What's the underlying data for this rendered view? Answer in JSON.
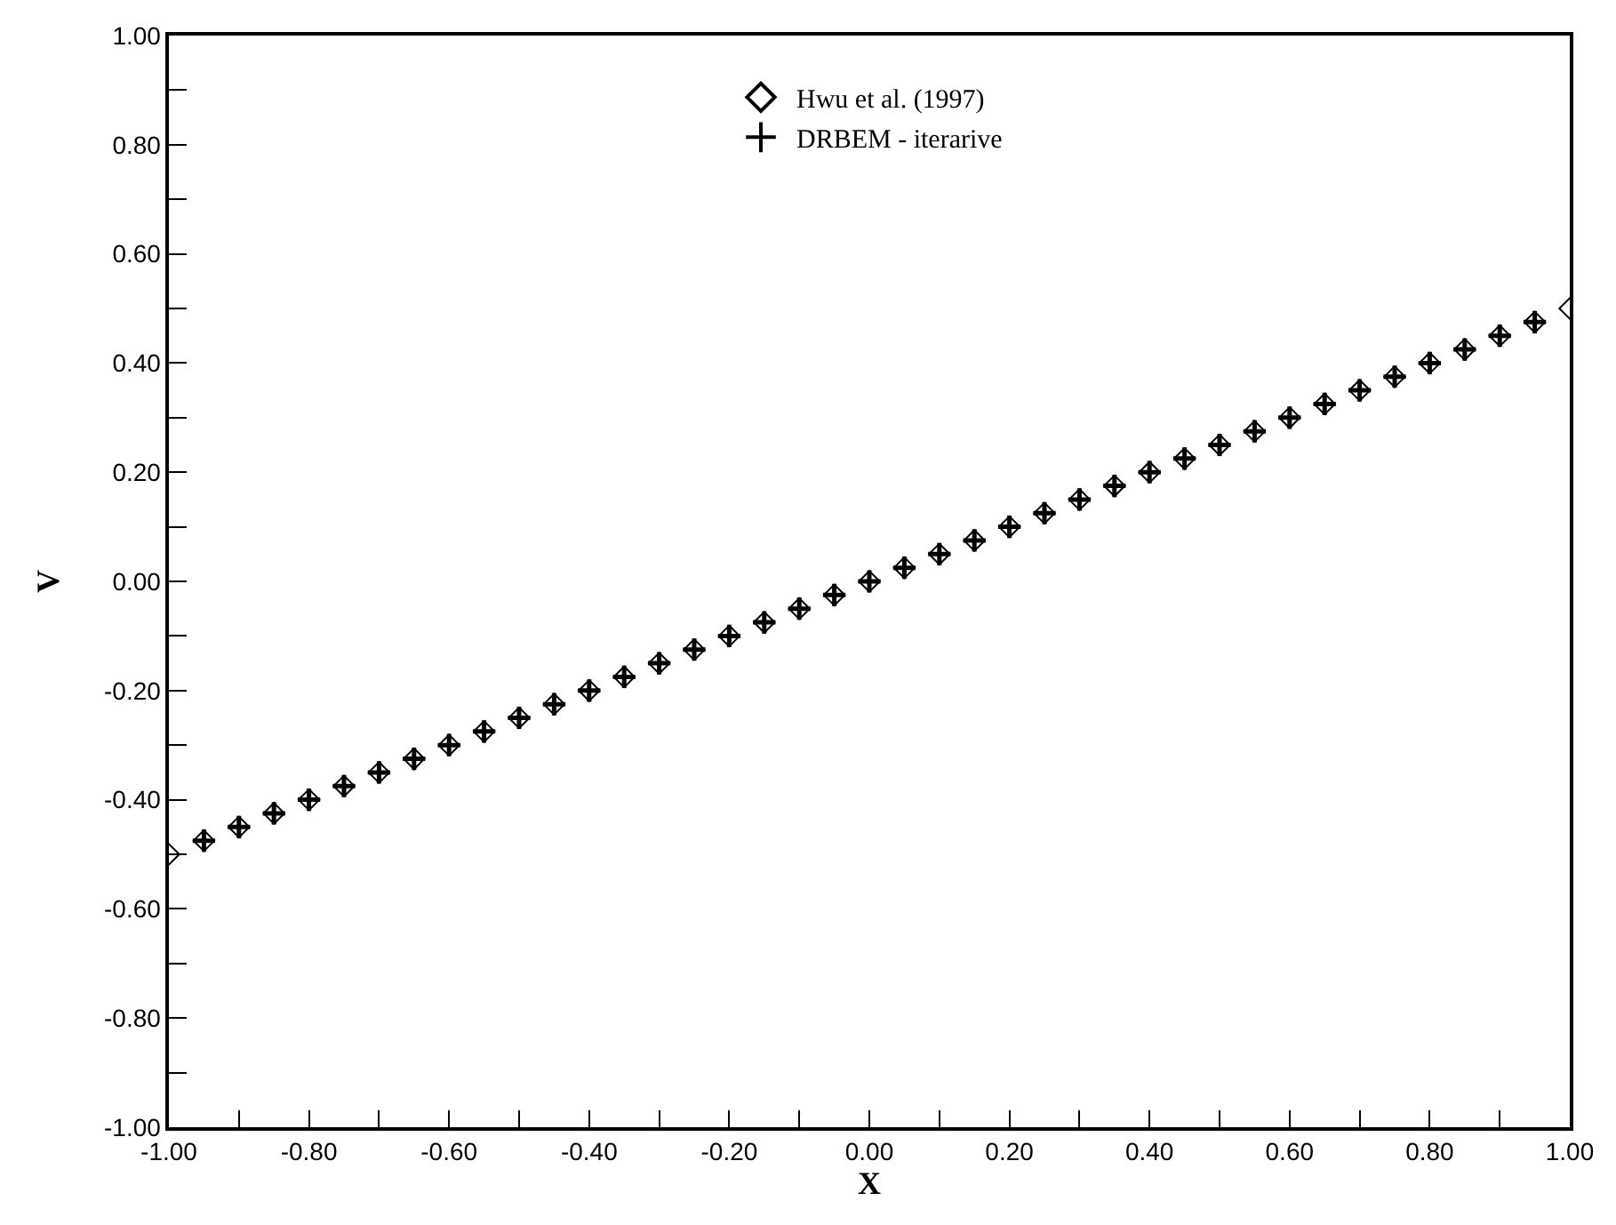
{
  "chart_data": {
    "type": "scatter",
    "xlabel": "X",
    "ylabel": "V",
    "xlim": [
      -1.0,
      1.0
    ],
    "ylim": [
      -1.0,
      1.0
    ],
    "xticks": [
      {
        "value": -1.0,
        "label": "-1.00"
      },
      {
        "value": -0.9,
        "label": null
      },
      {
        "value": -0.8,
        "label": "-0.80"
      },
      {
        "value": -0.7,
        "label": null
      },
      {
        "value": -0.6,
        "label": "-0.60"
      },
      {
        "value": -0.5,
        "label": null
      },
      {
        "value": -0.4,
        "label": "-0.40"
      },
      {
        "value": -0.3,
        "label": null
      },
      {
        "value": -0.2,
        "label": "-0.20"
      },
      {
        "value": -0.1,
        "label": null
      },
      {
        "value": 0.0,
        "label": "0.00"
      },
      {
        "value": 0.1,
        "label": null
      },
      {
        "value": 0.2,
        "label": "0.20"
      },
      {
        "value": 0.3,
        "label": null
      },
      {
        "value": 0.4,
        "label": "0.40"
      },
      {
        "value": 0.5,
        "label": null
      },
      {
        "value": 0.6,
        "label": "0.60"
      },
      {
        "value": 0.7,
        "label": null
      },
      {
        "value": 0.8,
        "label": "0.80"
      },
      {
        "value": 0.9,
        "label": null
      },
      {
        "value": 1.0,
        "label": "1.00"
      }
    ],
    "yticks": [
      {
        "value": -1.0,
        "label": "-1.00"
      },
      {
        "value": -0.9,
        "label": null
      },
      {
        "value": -0.8,
        "label": "-0.80"
      },
      {
        "value": -0.7,
        "label": null
      },
      {
        "value": -0.6,
        "label": "-0.60"
      },
      {
        "value": -0.5,
        "label": null
      },
      {
        "value": -0.4,
        "label": "-0.40"
      },
      {
        "value": -0.3,
        "label": null
      },
      {
        "value": -0.2,
        "label": "-0.20"
      },
      {
        "value": -0.1,
        "label": null
      },
      {
        "value": 0.0,
        "label": "0.00"
      },
      {
        "value": 0.1,
        "label": null
      },
      {
        "value": 0.2,
        "label": "0.20"
      },
      {
        "value": 0.3,
        "label": null
      },
      {
        "value": 0.4,
        "label": "0.40"
      },
      {
        "value": 0.5,
        "label": null
      },
      {
        "value": 0.6,
        "label": "0.60"
      },
      {
        "value": 0.7,
        "label": null
      },
      {
        "value": 0.8,
        "label": "0.80"
      },
      {
        "value": 0.9,
        "label": null
      },
      {
        "value": 1.0,
        "label": "1.00"
      }
    ],
    "legend": "top",
    "series": [
      {
        "name": "Hwu et al. (1997)",
        "color": "#000000",
        "marker": "diamond",
        "x": [
          -1.0,
          -0.95,
          -0.9,
          -0.85,
          -0.8,
          -0.75,
          -0.7,
          -0.65,
          -0.6,
          -0.55,
          -0.5,
          -0.45,
          -0.4,
          -0.35,
          -0.3,
          -0.25,
          -0.2,
          -0.15,
          -0.1,
          -0.05,
          0.0,
          0.05,
          0.1,
          0.15,
          0.2,
          0.25,
          0.3,
          0.35,
          0.4,
          0.45,
          0.5,
          0.55,
          0.6,
          0.65,
          0.7,
          0.75,
          0.8,
          0.85,
          0.9,
          0.95,
          1.0
        ],
        "values": [
          -0.5,
          -0.475,
          -0.45,
          -0.425,
          -0.4,
          -0.375,
          -0.35,
          -0.325,
          -0.3,
          -0.275,
          -0.25,
          -0.225,
          -0.2,
          -0.175,
          -0.15,
          -0.125,
          -0.1,
          -0.075,
          -0.05,
          -0.025,
          0.0,
          0.025,
          0.05,
          0.075,
          0.1,
          0.125,
          0.15,
          0.175,
          0.2,
          0.225,
          0.25,
          0.275,
          0.3,
          0.325,
          0.35,
          0.375,
          0.4,
          0.425,
          0.45,
          0.475,
          0.5
        ]
      },
      {
        "name": "DRBEM - iterarive",
        "color": "#000000",
        "marker": "cross",
        "x": [
          -0.95,
          -0.9,
          -0.85,
          -0.8,
          -0.75,
          -0.7,
          -0.65,
          -0.6,
          -0.55,
          -0.5,
          -0.45,
          -0.4,
          -0.35,
          -0.3,
          -0.25,
          -0.2,
          -0.15,
          -0.1,
          -0.05,
          0.0,
          0.05,
          0.1,
          0.15,
          0.2,
          0.25,
          0.3,
          0.35,
          0.4,
          0.45,
          0.5,
          0.55,
          0.6,
          0.65,
          0.7,
          0.75,
          0.8,
          0.85,
          0.9,
          0.95
        ],
        "values": [
          -0.475,
          -0.45,
          -0.425,
          -0.4,
          -0.375,
          -0.35,
          -0.325,
          -0.3,
          -0.275,
          -0.25,
          -0.225,
          -0.2,
          -0.175,
          -0.15,
          -0.125,
          -0.1,
          -0.075,
          -0.05,
          -0.025,
          0.0,
          0.025,
          0.05,
          0.075,
          0.1,
          0.125,
          0.15,
          0.175,
          0.2,
          0.225,
          0.25,
          0.275,
          0.3,
          0.325,
          0.35,
          0.375,
          0.4,
          0.425,
          0.45,
          0.475
        ]
      }
    ]
  }
}
